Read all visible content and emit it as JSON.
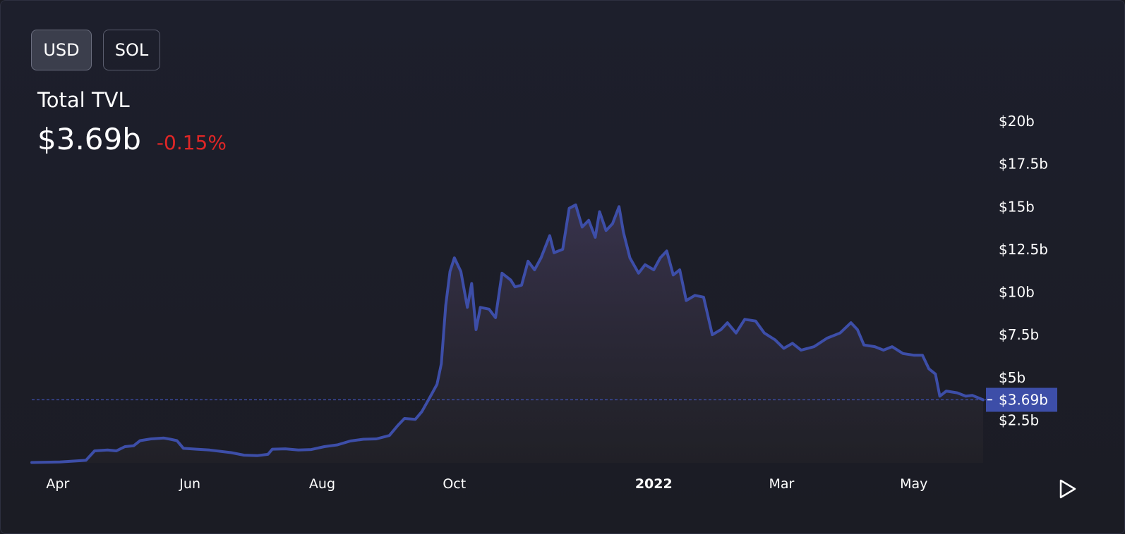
{
  "toggles": {
    "usd_label": "USD",
    "sol_label": "SOL",
    "selected": "USD"
  },
  "header": {
    "title": "Total TVL",
    "value": "$3.69b",
    "change": "-0.15%"
  },
  "colors": {
    "line": "#3d4ea8",
    "change_negative": "#e02626",
    "price_tag": "#3d4ea8"
  },
  "chart_data": {
    "type": "area",
    "title": "Total TVL",
    "y_unit": "billions USD",
    "ylim": [
      0,
      20
    ],
    "y_ticks": [
      2.5,
      5,
      7.5,
      10,
      12.5,
      15,
      17.5,
      20
    ],
    "y_tick_labels": [
      "$2.5b",
      "$5b",
      "$7.5b",
      "$10b",
      "$12.5b",
      "$15b",
      "$17.5b",
      "$20b"
    ],
    "x_range": [
      "2021-03-20",
      "2022-06-02"
    ],
    "x_ticks": [
      {
        "date": "2021-04-01",
        "label": "Apr",
        "bold": false
      },
      {
        "date": "2021-06-01",
        "label": "Jun",
        "bold": false
      },
      {
        "date": "2021-08-01",
        "label": "Aug",
        "bold": false
      },
      {
        "date": "2021-10-01",
        "label": "Oct",
        "bold": false
      },
      {
        "date": "2022-01-01",
        "label": "2022",
        "bold": true
      },
      {
        "date": "2022-03-01",
        "label": "Mar",
        "bold": false
      },
      {
        "date": "2022-05-01",
        "label": "May",
        "bold": false
      }
    ],
    "current_value": 3.69,
    "current_label": "$3.69b",
    "series": [
      {
        "points": [
          [
            "2021-03-20",
            0.02
          ],
          [
            "2021-04-02",
            0.05
          ],
          [
            "2021-04-14",
            0.15
          ],
          [
            "2021-04-18",
            0.7
          ],
          [
            "2021-04-24",
            0.75
          ],
          [
            "2021-04-28",
            0.7
          ],
          [
            "2021-05-02",
            0.95
          ],
          [
            "2021-05-06",
            1.0
          ],
          [
            "2021-05-09",
            1.3
          ],
          [
            "2021-05-14",
            1.4
          ],
          [
            "2021-05-20",
            1.45
          ],
          [
            "2021-05-23",
            1.38
          ],
          [
            "2021-05-26",
            1.3
          ],
          [
            "2021-05-29",
            0.85
          ],
          [
            "2021-06-04",
            0.8
          ],
          [
            "2021-06-10",
            0.75
          ],
          [
            "2021-06-20",
            0.6
          ],
          [
            "2021-06-26",
            0.45
          ],
          [
            "2021-07-02",
            0.42
          ],
          [
            "2021-07-07",
            0.5
          ],
          [
            "2021-07-09",
            0.8
          ],
          [
            "2021-07-15",
            0.82
          ],
          [
            "2021-07-21",
            0.75
          ],
          [
            "2021-07-27",
            0.78
          ],
          [
            "2021-08-02",
            0.95
          ],
          [
            "2021-08-08",
            1.05
          ],
          [
            "2021-08-14",
            1.28
          ],
          [
            "2021-08-20",
            1.38
          ],
          [
            "2021-08-26",
            1.4
          ],
          [
            "2021-09-01",
            1.6
          ],
          [
            "2021-09-05",
            2.2
          ],
          [
            "2021-09-08",
            2.6
          ],
          [
            "2021-09-13",
            2.55
          ],
          [
            "2021-09-16",
            3.0
          ],
          [
            "2021-09-20",
            3.9
          ],
          [
            "2021-09-23",
            4.6
          ],
          [
            "2021-09-25",
            5.8
          ],
          [
            "2021-09-27",
            9.2
          ],
          [
            "2021-09-29",
            11.2
          ],
          [
            "2021-10-01",
            12.0
          ],
          [
            "2021-10-04",
            11.2
          ],
          [
            "2021-10-07",
            9.1
          ],
          [
            "2021-10-09",
            10.5
          ],
          [
            "2021-10-11",
            7.8
          ],
          [
            "2021-10-13",
            9.1
          ],
          [
            "2021-10-17",
            9.0
          ],
          [
            "2021-10-20",
            8.5
          ],
          [
            "2021-10-23",
            11.1
          ],
          [
            "2021-10-27",
            10.7
          ],
          [
            "2021-10-29",
            10.3
          ],
          [
            "2021-11-01",
            10.4
          ],
          [
            "2021-11-04",
            11.8
          ],
          [
            "2021-11-07",
            11.3
          ],
          [
            "2021-11-10",
            12.0
          ],
          [
            "2021-11-14",
            13.3
          ],
          [
            "2021-11-16",
            12.3
          ],
          [
            "2021-11-20",
            12.5
          ],
          [
            "2021-11-23",
            14.9
          ],
          [
            "2021-11-26",
            15.1
          ],
          [
            "2021-11-29",
            13.8
          ],
          [
            "2021-12-02",
            14.2
          ],
          [
            "2021-12-05",
            13.2
          ],
          [
            "2021-12-07",
            14.7
          ],
          [
            "2021-12-10",
            13.6
          ],
          [
            "2021-12-13",
            14.0
          ],
          [
            "2021-12-16",
            15.0
          ],
          [
            "2021-12-18",
            13.5
          ],
          [
            "2021-12-21",
            12.0
          ],
          [
            "2021-12-25",
            11.1
          ],
          [
            "2021-12-28",
            11.6
          ],
          [
            "2022-01-01",
            11.3
          ],
          [
            "2022-01-04",
            12.0
          ],
          [
            "2022-01-07",
            12.4
          ],
          [
            "2022-01-10",
            11.0
          ],
          [
            "2022-01-13",
            11.3
          ],
          [
            "2022-01-16",
            9.5
          ],
          [
            "2022-01-20",
            9.8
          ],
          [
            "2022-01-24",
            9.7
          ],
          [
            "2022-01-28",
            7.5
          ],
          [
            "2022-02-01",
            7.8
          ],
          [
            "2022-02-04",
            8.2
          ],
          [
            "2022-02-08",
            7.6
          ],
          [
            "2022-02-12",
            8.4
          ],
          [
            "2022-02-17",
            8.3
          ],
          [
            "2022-02-21",
            7.6
          ],
          [
            "2022-02-26",
            7.2
          ],
          [
            "2022-03-02",
            6.7
          ],
          [
            "2022-03-06",
            7.0
          ],
          [
            "2022-03-10",
            6.6
          ],
          [
            "2022-03-16",
            6.8
          ],
          [
            "2022-03-22",
            7.3
          ],
          [
            "2022-03-28",
            7.6
          ],
          [
            "2022-04-02",
            8.2
          ],
          [
            "2022-04-05",
            7.8
          ],
          [
            "2022-04-08",
            6.9
          ],
          [
            "2022-04-13",
            6.8
          ],
          [
            "2022-04-17",
            6.6
          ],
          [
            "2022-04-21",
            6.8
          ],
          [
            "2022-04-26",
            6.4
          ],
          [
            "2022-05-01",
            6.3
          ],
          [
            "2022-05-05",
            6.3
          ],
          [
            "2022-05-08",
            5.5
          ],
          [
            "2022-05-11",
            5.2
          ],
          [
            "2022-05-13",
            3.9
          ],
          [
            "2022-05-16",
            4.2
          ],
          [
            "2022-05-21",
            4.1
          ],
          [
            "2022-05-25",
            3.9
          ],
          [
            "2022-05-28",
            3.95
          ],
          [
            "2022-06-02",
            3.69
          ]
        ]
      }
    ]
  }
}
